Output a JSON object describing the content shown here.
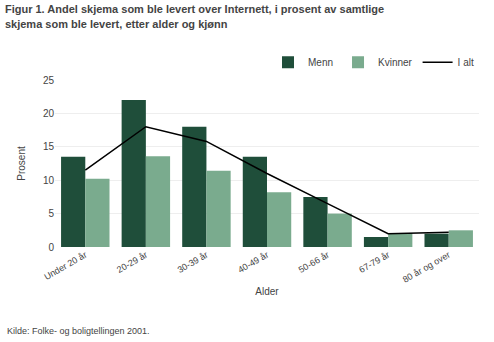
{
  "chart_data": {
    "type": "bar",
    "title": "Figur 1. Andel skjema som ble levert over Internett, i prosent av samtlige\nskjema som ble levert, etter alder og kjønn",
    "xlabel": "Alder",
    "ylabel": "Prosent",
    "annotations": [
      "Kilde: Folke- og boligtellingen 2001."
    ],
    "categories": [
      "Under 20 år",
      "20-29 år",
      "30-39 år",
      "40-49 år",
      "50-66 år",
      "67-79 år",
      "80 år og over"
    ],
    "series": [
      {
        "name": "Menn",
        "type": "bar",
        "color": "#1f4e3a",
        "values": [
          13.5,
          22.0,
          18.0,
          13.5,
          7.5,
          1.5,
          2.0
        ]
      },
      {
        "name": "Kvinner",
        "type": "bar",
        "color": "#7aab8e",
        "values": [
          10.2,
          13.6,
          11.4,
          8.2,
          5.0,
          2.1,
          2.5
        ]
      },
      {
        "name": "I alt",
        "type": "line",
        "color": "#000000",
        "values": [
          11.5,
          18.0,
          15.8,
          11.0,
          6.5,
          2.0,
          2.2
        ]
      }
    ],
    "ylim": [
      0,
      25
    ],
    "yticks": [
      0,
      5,
      10,
      15,
      20,
      25
    ],
    "grid": true,
    "legend": "upper right"
  }
}
